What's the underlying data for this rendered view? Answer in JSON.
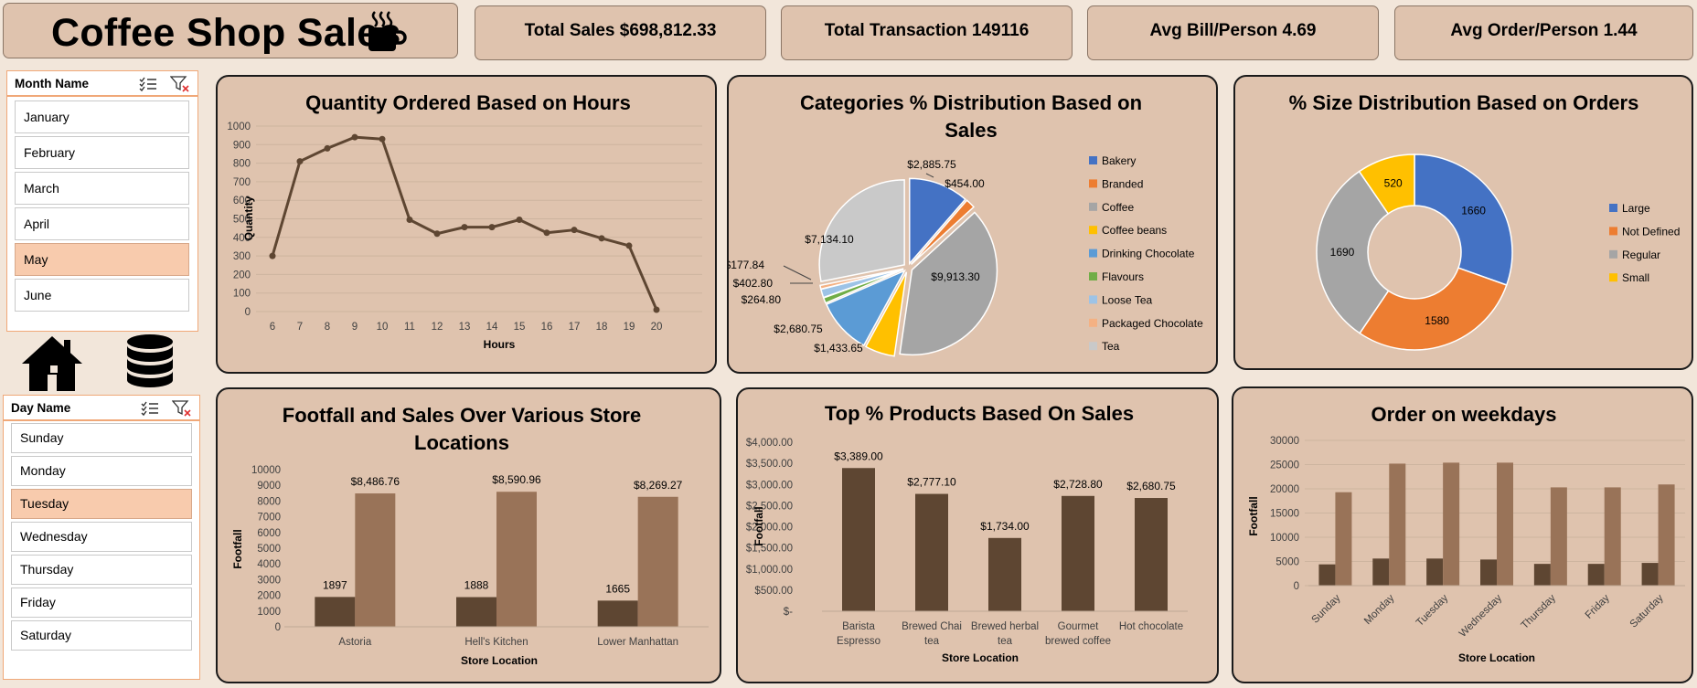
{
  "dashboard": {
    "title": "Coffee Shop Sales",
    "kpis": {
      "total_sales": "Total Sales $698,812.33",
      "total_transaction": "Total Transaction 149116",
      "avg_bill": "Avg Bill/Person 4.69",
      "avg_order": "Avg Order/Person 1.44"
    },
    "icons": [
      "coffee-cup-icon",
      "home-icon",
      "database-icon",
      "multi-select-icon",
      "clear-filter-icon"
    ]
  },
  "month_slicer": {
    "title": "Month Name",
    "items": [
      "January",
      "February",
      "March",
      "April",
      "May",
      "June"
    ],
    "selected": "May"
  },
  "day_slicer": {
    "title": "Day Name",
    "items": [
      "Sunday",
      "Monday",
      "Tuesday",
      "Wednesday",
      "Thursday",
      "Friday",
      "Saturday"
    ],
    "selected": "Tuesday"
  },
  "colors": {
    "brown_dark": "#5e4632",
    "brown_light": "#997358",
    "line": "#5e4632"
  },
  "chart_data": [
    {
      "id": "hours",
      "type": "line",
      "title": "Quantity Ordered Based on Hours",
      "xlabel": "Hours",
      "ylabel": "Quantity",
      "x": [
        6,
        7,
        8,
        9,
        10,
        11,
        12,
        13,
        14,
        15,
        16,
        17,
        18,
        19,
        20
      ],
      "values": [
        300,
        810,
        880,
        940,
        930,
        495,
        420,
        455,
        455,
        495,
        425,
        440,
        395,
        355,
        10
      ],
      "ylim": [
        0,
        1000
      ],
      "yticks": [
        "0",
        "100",
        "200",
        "300",
        "400",
        "500",
        "600",
        "700",
        "800",
        "900",
        "1000"
      ],
      "grid": true,
      "legend": "none"
    },
    {
      "id": "categories",
      "type": "pie",
      "title": "Categories % Distribution Based on Sales",
      "slices": [
        {
          "name": "Bakery",
          "value": 2885.75,
          "label": "$2,885.75",
          "color": "#4472c4"
        },
        {
          "name": "Branded",
          "value": 454.0,
          "label": "$454.00",
          "color": "#ed7d31"
        },
        {
          "name": "Coffee",
          "value": 9913.3,
          "label": "$9,913.30",
          "color": "#a5a5a5"
        },
        {
          "name": "Coffee beans",
          "value": 1433.65,
          "label": "$1,433.65",
          "color": "#ffc000"
        },
        {
          "name": "Drinking Chocolate",
          "value": 2680.75,
          "label": "$2,680.75",
          "color": "#5b9bd5"
        },
        {
          "name": "Flavours",
          "value": 264.8,
          "label": "$264.80",
          "color": "#70ad47"
        },
        {
          "name": "Loose Tea",
          "value": 402.8,
          "label": "$402.80",
          "color": "#9dc3e6"
        },
        {
          "name": "Packaged Chocolate",
          "value": 177.84,
          "label": "$177.84",
          "color": "#f4b183"
        },
        {
          "name": "Tea",
          "value": 7134.1,
          "label": "$7,134.10",
          "color": "#c9c9c9"
        }
      ],
      "legend": "right"
    },
    {
      "id": "sizes",
      "type": "pie",
      "title": "% Size Distribution Based on Orders",
      "slices": [
        {
          "name": "Large",
          "value": 1660,
          "label": "1660",
          "color": "#4472c4"
        },
        {
          "name": "Not Defined",
          "value": 1580,
          "label": "1580",
          "color": "#ed7d31"
        },
        {
          "name": "Regular",
          "value": 1690,
          "label": "1690",
          "color": "#a5a5a5"
        },
        {
          "name": "Small",
          "value": 520,
          "label": "520",
          "color": "#ffc000"
        }
      ],
      "legend": "right"
    },
    {
      "id": "locations",
      "type": "bar",
      "title": "Footfall and Sales Over Various Store Locations",
      "xlabel": "Store Location",
      "ylabel": "Footfall",
      "categories": [
        "Astoria",
        "Hell's Kitchen",
        "Lower Manhattan"
      ],
      "series": [
        {
          "values": [
            1897,
            1888,
            1665
          ],
          "labels": [
            "1897",
            "1888",
            "1665"
          ]
        },
        {
          "values": [
            8486.76,
            8590.96,
            8269.27
          ],
          "labels": [
            "$8,486.76",
            "$8,590.96",
            "$8,269.27"
          ]
        }
      ],
      "ylim": [
        0,
        10000
      ],
      "yticks": [
        "0",
        "1000",
        "2000",
        "3000",
        "4000",
        "5000",
        "6000",
        "7000",
        "8000",
        "9000",
        "10000"
      ],
      "legend": "none"
    },
    {
      "id": "products",
      "type": "bar",
      "title": "Top % Products Based On Sales",
      "xlabel": "Store Location",
      "ylabel": "Footfall",
      "categories": [
        "Barista Espresso",
        "Brewed Chai tea",
        "Brewed herbal tea",
        "Gourmet brewed coffee",
        "Hot chocolate"
      ],
      "values": [
        3389.0,
        2777.1,
        1734.0,
        2728.8,
        2680.75
      ],
      "labels": [
        "$3,389.00",
        "$2,777.10",
        "$1,734.00",
        "$2,728.80",
        "$2,680.75"
      ],
      "ylim": [
        0,
        4000
      ],
      "yticks": [
        "$-",
        "$500.00",
        "$1,000.00",
        "$1,500.00",
        "$2,000.00",
        "$2,500.00",
        "$3,000.00",
        "$3,500.00",
        "$4,000.00"
      ],
      "legend": "none"
    },
    {
      "id": "weekdays",
      "type": "bar",
      "title": "Order on weekdays",
      "xlabel": "Store Location",
      "ylabel": "Footfall",
      "categories": [
        "Sunday",
        "Monday",
        "Tuesday",
        "Wednesday",
        "Thursday",
        "Friday",
        "Saturday"
      ],
      "series": [
        {
          "values": [
            4400,
            5600,
            5600,
            5400,
            4500,
            4500,
            4700
          ]
        },
        {
          "values": [
            19300,
            25200,
            25400,
            25400,
            20300,
            20300,
            20900
          ]
        }
      ],
      "ylim": [
        0,
        30000
      ],
      "yticks": [
        "0",
        "5000",
        "10000",
        "15000",
        "20000",
        "25000",
        "30000"
      ],
      "grid": true,
      "legend": "none"
    }
  ]
}
